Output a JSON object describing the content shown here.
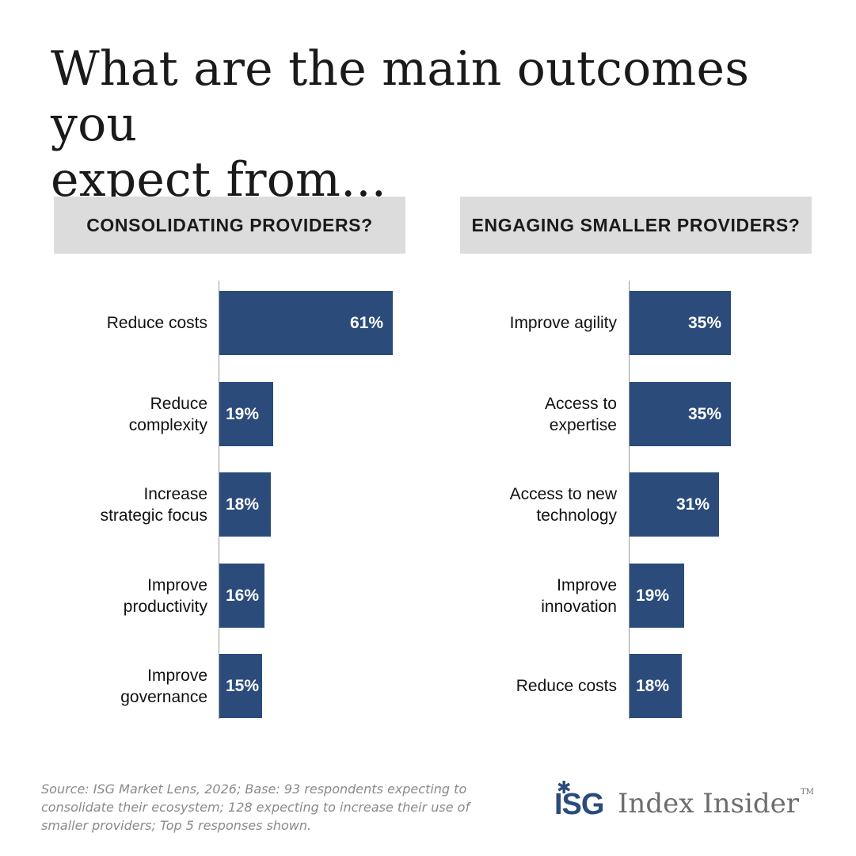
{
  "title_lines": [
    "What are the main outcomes you",
    "expect from..."
  ],
  "colors": {
    "bar": "#2b4b7b",
    "header_bg": "#dcdcdc"
  },
  "chart_data": [
    {
      "type": "bar",
      "orientation": "horizontal",
      "title": "CONSOLIDATING PROVIDERS?",
      "categories": [
        [
          "Reduce costs"
        ],
        [
          "Reduce",
          "complexity"
        ],
        [
          "Increase",
          "strategic focus"
        ],
        [
          "Improve",
          "productivity"
        ],
        [
          "Improve",
          "governance"
        ]
      ],
      "values": [
        61,
        19,
        18,
        16,
        15
      ],
      "value_labels": [
        "61%",
        "19%",
        "18%",
        "16%",
        "15%"
      ],
      "unit": "%",
      "grid": false
    },
    {
      "type": "bar",
      "orientation": "horizontal",
      "title": "ENGAGING SMALLER PROVIDERS?",
      "categories": [
        [
          "Improve agility"
        ],
        [
          "Access to",
          "expertise"
        ],
        [
          "Access to new",
          "technology"
        ],
        [
          "Improve",
          "innovation"
        ],
        [
          "Reduce costs"
        ]
      ],
      "values": [
        35,
        35,
        31,
        19,
        18
      ],
      "value_labels": [
        "35%",
        "35%",
        "31%",
        "19%",
        "18%"
      ],
      "unit": "%",
      "grid": false
    }
  ],
  "source_lines": [
    "Source: ISG Market Lens, 2026; Base: 93 respondents expecting to",
    "consolidate their ecosystem; 128 expecting to increase their use of",
    "smaller providers; Top 5 responses shown."
  ],
  "logo": {
    "mark": "ISG",
    "text": "Index Insider",
    "tm": "TM"
  }
}
